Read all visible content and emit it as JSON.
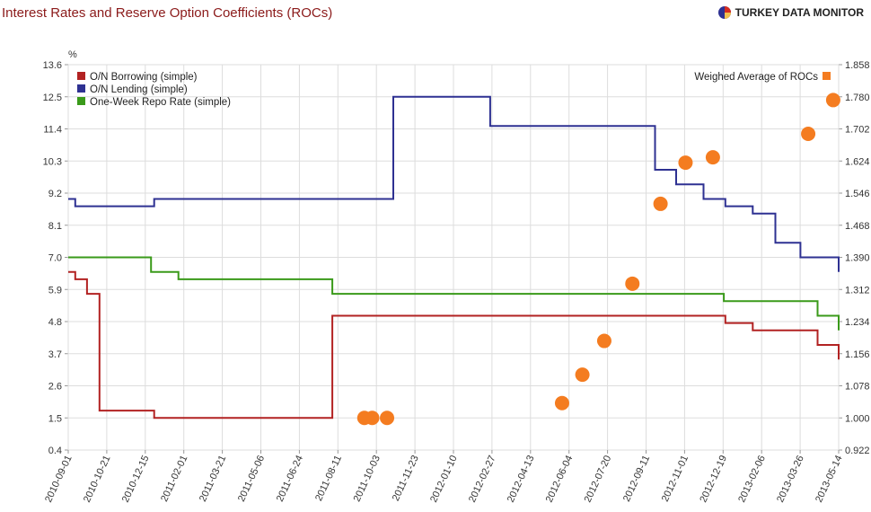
{
  "page": {
    "title": "Interest Rates and Reserve Option Coefficients (ROCs)",
    "brand": "TURKEY DATA MONITOR",
    "brand_icon": "pie-logo-icon"
  },
  "chart_data": {
    "type": "line",
    "title": "Interest Rates and Reserve Option Coefficients (ROCs)",
    "ylabel_left": "%",
    "ylabel_right": "",
    "xlabel": "",
    "x_ticks": [
      "2010-09-01",
      "2010-10-21",
      "2010-12-15",
      "2011-02-01",
      "2011-03-21",
      "2011-05-06",
      "2011-06-24",
      "2011-08-11",
      "2011-10-03",
      "2011-11-23",
      "2012-01-10",
      "2012-02-27",
      "2012-04-13",
      "2012-06-04",
      "2012-07-20",
      "2012-09-11",
      "2012-11-01",
      "2012-12-19",
      "2013-02-06",
      "2013-03-26",
      "2013-05-14"
    ],
    "x_range": [
      "2010-09-01",
      "2013-05-14"
    ],
    "y_left_ticks": [
      "0.4",
      "1.5",
      "2.6",
      "3.7",
      "4.8",
      "5.9",
      "7.0",
      "8.1",
      "9.2",
      "10.3",
      "11.4",
      "12.5",
      "13.6"
    ],
    "ylim_left": [
      0.4,
      13.6
    ],
    "y_right_ticks": [
      "0.922",
      "1.000",
      "1.078",
      "1.156",
      "1.234",
      "1.312",
      "1.390",
      "1.468",
      "1.546",
      "1.624",
      "1.702",
      "1.780",
      "1.858"
    ],
    "ylim_right": [
      0.922,
      1.858
    ],
    "grid": true,
    "legend_left_position": "top-left",
    "legend_right_position": "top-right",
    "series": [
      {
        "name": "O/N Borrowing (simple)",
        "axis": "left",
        "color": "#b22222",
        "step": true,
        "points": [
          [
            "2010-09-01",
            6.5
          ],
          [
            "2010-09-10",
            6.25
          ],
          [
            "2010-09-25",
            5.75
          ],
          [
            "2010-10-08",
            5.75
          ],
          [
            "2010-10-11",
            1.75
          ],
          [
            "2010-11-01",
            1.75
          ],
          [
            "2010-12-20",
            1.5
          ],
          [
            "2011-08-04",
            1.5
          ],
          [
            "2011-08-05",
            5.0
          ],
          [
            "2012-12-19",
            5.0
          ],
          [
            "2012-12-20",
            4.75
          ],
          [
            "2013-01-24",
            4.5
          ],
          [
            "2013-03-25",
            4.5
          ],
          [
            "2013-04-17",
            4.0
          ],
          [
            "2013-05-10",
            4.0
          ],
          [
            "2013-05-14",
            3.5
          ]
        ]
      },
      {
        "name": "O/N Lending (simple)",
        "axis": "left",
        "color": "#2e3192",
        "step": true,
        "points": [
          [
            "2010-09-01",
            9.0
          ],
          [
            "2010-09-10",
            8.75
          ],
          [
            "2010-12-20",
            9.0
          ],
          [
            "2011-10-21",
            9.0
          ],
          [
            "2011-10-22",
            12.5
          ],
          [
            "2012-02-22",
            12.5
          ],
          [
            "2012-02-23",
            11.5
          ],
          [
            "2012-09-20",
            11.5
          ],
          [
            "2012-09-21",
            10.0
          ],
          [
            "2012-10-18",
            9.5
          ],
          [
            "2012-11-22",
            9.0
          ],
          [
            "2012-12-19",
            9.0
          ],
          [
            "2012-12-20",
            8.75
          ],
          [
            "2013-01-24",
            8.5
          ],
          [
            "2013-02-21",
            8.5
          ],
          [
            "2013-02-22",
            7.5
          ],
          [
            "2013-03-26",
            7.0
          ],
          [
            "2013-04-17",
            7.0
          ],
          [
            "2013-05-14",
            6.5
          ]
        ]
      },
      {
        "name": "One-Week Repo Rate (simple)",
        "axis": "left",
        "color": "#3a9a1a",
        "step": true,
        "points": [
          [
            "2010-09-01",
            7.0
          ],
          [
            "2010-12-15",
            7.0
          ],
          [
            "2010-12-16",
            6.5
          ],
          [
            "2011-01-20",
            6.25
          ],
          [
            "2011-08-04",
            6.25
          ],
          [
            "2011-08-05",
            5.75
          ],
          [
            "2012-12-17",
            5.75
          ],
          [
            "2012-12-18",
            5.5
          ],
          [
            "2013-04-16",
            5.5
          ],
          [
            "2013-04-17",
            5.0
          ],
          [
            "2013-05-12",
            5.0
          ],
          [
            "2013-05-14",
            4.5
          ]
        ]
      }
    ],
    "scatter": {
      "name": "Weighed Average of ROCs",
      "axis": "right",
      "color": "#f47c20",
      "points": [
        [
          "2011-09-15",
          1.0
        ],
        [
          "2011-09-25",
          1.0
        ],
        [
          "2011-10-14",
          1.0
        ],
        [
          "2012-05-25",
          1.036
        ],
        [
          "2012-06-20",
          1.105
        ],
        [
          "2012-07-18",
          1.187
        ],
        [
          "2012-08-23",
          1.326
        ],
        [
          "2012-09-28",
          1.52
        ],
        [
          "2012-10-30",
          1.62
        ],
        [
          "2012-12-04",
          1.633
        ],
        [
          "2013-04-05",
          1.69
        ],
        [
          "2013-05-07",
          1.772
        ]
      ]
    }
  }
}
